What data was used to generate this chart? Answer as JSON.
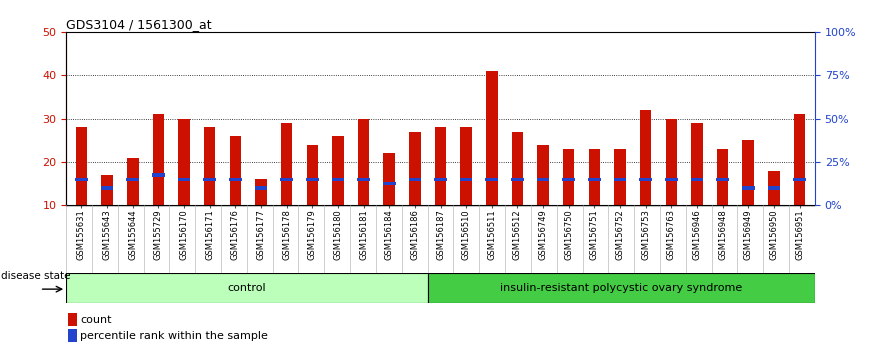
{
  "title": "GDS3104 / 1561300_at",
  "samples": [
    "GSM155631",
    "GSM155643",
    "GSM155644",
    "GSM155729",
    "GSM156170",
    "GSM156171",
    "GSM156176",
    "GSM156177",
    "GSM156178",
    "GSM156179",
    "GSM156180",
    "GSM156181",
    "GSM156184",
    "GSM156186",
    "GSM156187",
    "GSM156510",
    "GSM156511",
    "GSM156512",
    "GSM156749",
    "GSM156750",
    "GSM156751",
    "GSM156752",
    "GSM156753",
    "GSM156763",
    "GSM156946",
    "GSM156948",
    "GSM156949",
    "GSM156950",
    "GSM156951"
  ],
  "counts": [
    28,
    17,
    21,
    31,
    30,
    28,
    26,
    16,
    29,
    24,
    26,
    30,
    22,
    27,
    28,
    28,
    41,
    27,
    24,
    23,
    23,
    23,
    32,
    30,
    29,
    23,
    25,
    18,
    31
  ],
  "percentile_ranks": [
    16,
    14,
    16,
    17,
    16,
    16,
    16,
    14,
    16,
    16,
    16,
    16,
    15,
    16,
    16,
    16,
    16,
    16,
    16,
    16,
    16,
    16,
    16,
    16,
    16,
    16,
    14,
    14,
    16
  ],
  "ymin": 10,
  "ymax": 50,
  "yticks_left": [
    10,
    20,
    30,
    40,
    50
  ],
  "control_count": 14,
  "group1_label": "control",
  "group2_label": "insulin-resistant polycystic ovary syndrome",
  "disease_state_label": "disease state",
  "legend_count_label": "count",
  "legend_pct_label": "percentile rank within the sample",
  "bar_color_red": "#cc1100",
  "bar_color_blue": "#2244cc",
  "bg_color_plot": "#ffffff",
  "xtick_bg": "#d0d0d0",
  "bg_color_group1": "#bbffbb",
  "bg_color_group2": "#44cc44",
  "spine_color": "#000000",
  "title_color": "#000000",
  "left_axis_color": "#cc1100",
  "right_axis_color": "#2244cc",
  "grid_color": "#000000",
  "bar_width": 0.45
}
